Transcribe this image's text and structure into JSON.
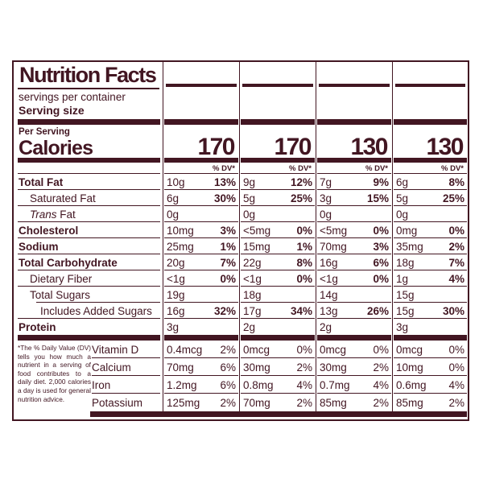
{
  "colors": {
    "ink": "#421622",
    "background": "#FFFFFF"
  },
  "label": {
    "title": "Nutrition Facts",
    "servings_text": "servings per container",
    "serving_size_text": "Serving size",
    "per_serving_text": "Per Serving",
    "calories_text": "Calories",
    "dv_header": "% DV*",
    "calories_values": [
      "170",
      "170",
      "130",
      "130"
    ],
    "nutrient_rows": [
      {
        "label_parts": [
          {
            "text": "Total Fat",
            "italic": false
          }
        ],
        "bold": true,
        "indent": 0,
        "left_line": "normal",
        "data_line": "normal",
        "cells": [
          {
            "amount": "10g",
            "dv": "13%"
          },
          {
            "amount": "9g",
            "dv": "12%"
          },
          {
            "amount": "7g",
            "dv": "9%"
          },
          {
            "amount": "6g",
            "dv": "8%"
          }
        ]
      },
      {
        "label_parts": [
          {
            "text": "Saturated Fat",
            "italic": false
          }
        ],
        "bold": false,
        "indent": 1,
        "left_line": "normal",
        "data_line": "normal",
        "cells": [
          {
            "amount": "6g",
            "dv": "30%"
          },
          {
            "amount": "5g",
            "dv": "25%"
          },
          {
            "amount": "3g",
            "dv": "15%"
          },
          {
            "amount": "5g",
            "dv": "25%"
          }
        ]
      },
      {
        "label_parts": [
          {
            "text": "Trans",
            "italic": true
          },
          {
            "text": " Fat",
            "italic": false
          }
        ],
        "bold": false,
        "indent": 1,
        "left_line": "normal",
        "data_line": "normal",
        "cells": [
          {
            "amount": "0g",
            "dv": ""
          },
          {
            "amount": "0g",
            "dv": ""
          },
          {
            "amount": "0g",
            "dv": ""
          },
          {
            "amount": "0g",
            "dv": ""
          }
        ]
      },
      {
        "label_parts": [
          {
            "text": "Cholesterol",
            "italic": false
          }
        ],
        "bold": true,
        "indent": 0,
        "left_line": "normal",
        "data_line": "normal",
        "cells": [
          {
            "amount": "10mg",
            "dv": "3%"
          },
          {
            "amount": "<5mg",
            "dv": "0%"
          },
          {
            "amount": "<5mg",
            "dv": "0%"
          },
          {
            "amount": "0mg",
            "dv": "0%"
          }
        ]
      },
      {
        "label_parts": [
          {
            "text": "Sodium",
            "italic": false
          }
        ],
        "bold": true,
        "indent": 0,
        "left_line": "normal",
        "data_line": "normal",
        "cells": [
          {
            "amount": "25mg",
            "dv": "1%"
          },
          {
            "amount": "15mg",
            "dv": "1%"
          },
          {
            "amount": "70mg",
            "dv": "3%"
          },
          {
            "amount": "35mg",
            "dv": "2%"
          }
        ]
      },
      {
        "label_parts": [
          {
            "text": "Total Carbohydrate",
            "italic": false
          }
        ],
        "bold": true,
        "indent": 0,
        "left_line": "normal",
        "data_line": "normal",
        "cells": [
          {
            "amount": "20g",
            "dv": "7%"
          },
          {
            "amount": "22g",
            "dv": "8%"
          },
          {
            "amount": "16g",
            "dv": "6%"
          },
          {
            "amount": "18g",
            "dv": "7%"
          }
        ]
      },
      {
        "label_parts": [
          {
            "text": "Dietary Fiber",
            "italic": false
          }
        ],
        "bold": false,
        "indent": 1,
        "left_line": "normal",
        "data_line": "normal",
        "cells": [
          {
            "amount": "<1g",
            "dv": "0%"
          },
          {
            "amount": "<1g",
            "dv": "0%"
          },
          {
            "amount": "<1g",
            "dv": "0%"
          },
          {
            "amount": "1g",
            "dv": "4%"
          }
        ]
      },
      {
        "label_parts": [
          {
            "text": "Total Sugars",
            "italic": false
          }
        ],
        "bold": false,
        "indent": 1,
        "left_line": "indent",
        "data_line": "normal",
        "cells": [
          {
            "amount": "19g",
            "dv": ""
          },
          {
            "amount": "18g",
            "dv": ""
          },
          {
            "amount": "14g",
            "dv": ""
          },
          {
            "amount": "15g",
            "dv": ""
          }
        ]
      },
      {
        "label_parts": [
          {
            "text": "Includes Added Sugars",
            "italic": false
          }
        ],
        "bold": false,
        "indent": 2,
        "left_line": "normal",
        "data_line": "normal",
        "cells": [
          {
            "amount": "16g",
            "dv": "32%"
          },
          {
            "amount": "17g",
            "dv": "34%"
          },
          {
            "amount": "13g",
            "dv": "26%"
          },
          {
            "amount": "15g",
            "dv": "30%"
          }
        ]
      },
      {
        "label_parts": [
          {
            "text": "Protein",
            "italic": false
          }
        ],
        "bold": true,
        "indent": 0,
        "left_line": "none",
        "data_line": "none",
        "cells": [
          {
            "amount": "3g",
            "dv": ""
          },
          {
            "amount": "2g",
            "dv": ""
          },
          {
            "amount": "2g",
            "dv": ""
          },
          {
            "amount": "3g",
            "dv": ""
          }
        ]
      }
    ],
    "vitamin_rows": [
      {
        "label": "Vitamin D",
        "line": "normal",
        "cells": [
          {
            "amount": "0.4mcg",
            "dv": "2%"
          },
          {
            "amount": "0mcg",
            "dv": "0%"
          },
          {
            "amount": "0mcg",
            "dv": "0%"
          },
          {
            "amount": "0mcg",
            "dv": "0%"
          }
        ]
      },
      {
        "label": "Calcium",
        "line": "normal",
        "cells": [
          {
            "amount": "70mg",
            "dv": "6%"
          },
          {
            "amount": "30mg",
            "dv": "2%"
          },
          {
            "amount": "30mg",
            "dv": "2%"
          },
          {
            "amount": "10mg",
            "dv": "0%"
          }
        ]
      },
      {
        "label": "Iron",
        "line": "normal",
        "cells": [
          {
            "amount": "1.2mg",
            "dv": "6%"
          },
          {
            "amount": "0.8mg",
            "dv": "4%"
          },
          {
            "amount": "0.7mg",
            "dv": "4%"
          },
          {
            "amount": "0.6mg",
            "dv": "4%"
          }
        ]
      },
      {
        "label": "Potassium",
        "line": "none",
        "cells": [
          {
            "amount": "125mg",
            "dv": "2%"
          },
          {
            "amount": "70mg",
            "dv": "2%"
          },
          {
            "amount": "85mg",
            "dv": "2%"
          },
          {
            "amount": "85mg",
            "dv": "2%"
          }
        ]
      }
    ],
    "footnote": "*The % Daily Value (DV) tells you how much a nutrient in a serving of food contributes to a daily diet. 2,000 calories a day is used for general nutrition advice."
  }
}
